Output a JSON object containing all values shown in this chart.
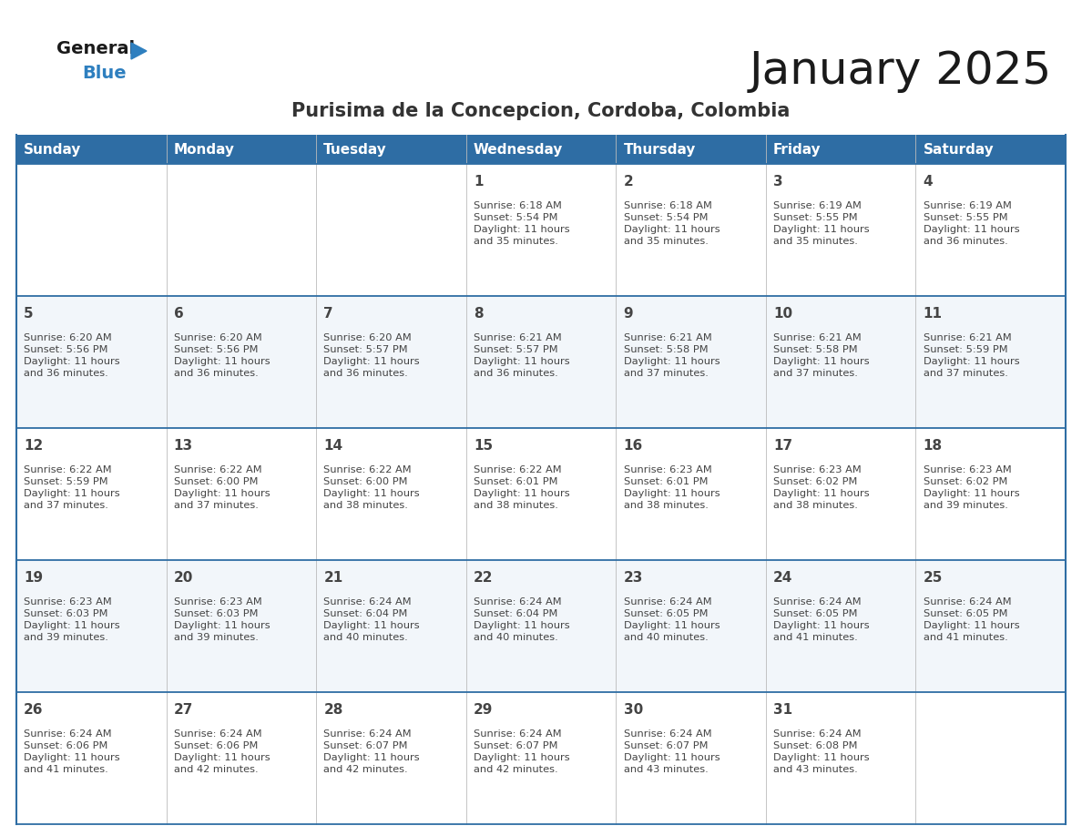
{
  "title": "January 2025",
  "subtitle": "Purisima de la Concepcion, Cordoba, Colombia",
  "header_bg_color": "#2E6DA4",
  "header_text_color": "#FFFFFF",
  "grid_line_color": "#2E6DA4",
  "text_color": "#444444",
  "days_of_week": [
    "Sunday",
    "Monday",
    "Tuesday",
    "Wednesday",
    "Thursday",
    "Friday",
    "Saturday"
  ],
  "calendar_data": [
    [
      {
        "day": "",
        "info": ""
      },
      {
        "day": "",
        "info": ""
      },
      {
        "day": "",
        "info": ""
      },
      {
        "day": "1",
        "info": "Sunrise: 6:18 AM\nSunset: 5:54 PM\nDaylight: 11 hours\nand 35 minutes."
      },
      {
        "day": "2",
        "info": "Sunrise: 6:18 AM\nSunset: 5:54 PM\nDaylight: 11 hours\nand 35 minutes."
      },
      {
        "day": "3",
        "info": "Sunrise: 6:19 AM\nSunset: 5:55 PM\nDaylight: 11 hours\nand 35 minutes."
      },
      {
        "day": "4",
        "info": "Sunrise: 6:19 AM\nSunset: 5:55 PM\nDaylight: 11 hours\nand 36 minutes."
      }
    ],
    [
      {
        "day": "5",
        "info": "Sunrise: 6:20 AM\nSunset: 5:56 PM\nDaylight: 11 hours\nand 36 minutes."
      },
      {
        "day": "6",
        "info": "Sunrise: 6:20 AM\nSunset: 5:56 PM\nDaylight: 11 hours\nand 36 minutes."
      },
      {
        "day": "7",
        "info": "Sunrise: 6:20 AM\nSunset: 5:57 PM\nDaylight: 11 hours\nand 36 minutes."
      },
      {
        "day": "8",
        "info": "Sunrise: 6:21 AM\nSunset: 5:57 PM\nDaylight: 11 hours\nand 36 minutes."
      },
      {
        "day": "9",
        "info": "Sunrise: 6:21 AM\nSunset: 5:58 PM\nDaylight: 11 hours\nand 37 minutes."
      },
      {
        "day": "10",
        "info": "Sunrise: 6:21 AM\nSunset: 5:58 PM\nDaylight: 11 hours\nand 37 minutes."
      },
      {
        "day": "11",
        "info": "Sunrise: 6:21 AM\nSunset: 5:59 PM\nDaylight: 11 hours\nand 37 minutes."
      }
    ],
    [
      {
        "day": "12",
        "info": "Sunrise: 6:22 AM\nSunset: 5:59 PM\nDaylight: 11 hours\nand 37 minutes."
      },
      {
        "day": "13",
        "info": "Sunrise: 6:22 AM\nSunset: 6:00 PM\nDaylight: 11 hours\nand 37 minutes."
      },
      {
        "day": "14",
        "info": "Sunrise: 6:22 AM\nSunset: 6:00 PM\nDaylight: 11 hours\nand 38 minutes."
      },
      {
        "day": "15",
        "info": "Sunrise: 6:22 AM\nSunset: 6:01 PM\nDaylight: 11 hours\nand 38 minutes."
      },
      {
        "day": "16",
        "info": "Sunrise: 6:23 AM\nSunset: 6:01 PM\nDaylight: 11 hours\nand 38 minutes."
      },
      {
        "day": "17",
        "info": "Sunrise: 6:23 AM\nSunset: 6:02 PM\nDaylight: 11 hours\nand 38 minutes."
      },
      {
        "day": "18",
        "info": "Sunrise: 6:23 AM\nSunset: 6:02 PM\nDaylight: 11 hours\nand 39 minutes."
      }
    ],
    [
      {
        "day": "19",
        "info": "Sunrise: 6:23 AM\nSunset: 6:03 PM\nDaylight: 11 hours\nand 39 minutes."
      },
      {
        "day": "20",
        "info": "Sunrise: 6:23 AM\nSunset: 6:03 PM\nDaylight: 11 hours\nand 39 minutes."
      },
      {
        "day": "21",
        "info": "Sunrise: 6:24 AM\nSunset: 6:04 PM\nDaylight: 11 hours\nand 40 minutes."
      },
      {
        "day": "22",
        "info": "Sunrise: 6:24 AM\nSunset: 6:04 PM\nDaylight: 11 hours\nand 40 minutes."
      },
      {
        "day": "23",
        "info": "Sunrise: 6:24 AM\nSunset: 6:05 PM\nDaylight: 11 hours\nand 40 minutes."
      },
      {
        "day": "24",
        "info": "Sunrise: 6:24 AM\nSunset: 6:05 PM\nDaylight: 11 hours\nand 41 minutes."
      },
      {
        "day": "25",
        "info": "Sunrise: 6:24 AM\nSunset: 6:05 PM\nDaylight: 11 hours\nand 41 minutes."
      }
    ],
    [
      {
        "day": "26",
        "info": "Sunrise: 6:24 AM\nSunset: 6:06 PM\nDaylight: 11 hours\nand 41 minutes."
      },
      {
        "day": "27",
        "info": "Sunrise: 6:24 AM\nSunset: 6:06 PM\nDaylight: 11 hours\nand 42 minutes."
      },
      {
        "day": "28",
        "info": "Sunrise: 6:24 AM\nSunset: 6:07 PM\nDaylight: 11 hours\nand 42 minutes."
      },
      {
        "day": "29",
        "info": "Sunrise: 6:24 AM\nSunset: 6:07 PM\nDaylight: 11 hours\nand 42 minutes."
      },
      {
        "day": "30",
        "info": "Sunrise: 6:24 AM\nSunset: 6:07 PM\nDaylight: 11 hours\nand 43 minutes."
      },
      {
        "day": "31",
        "info": "Sunrise: 6:24 AM\nSunset: 6:08 PM\nDaylight: 11 hours\nand 43 minutes."
      },
      {
        "day": "",
        "info": ""
      }
    ]
  ],
  "logo_general_color": "#1a1a1a",
  "logo_blue_color": "#2E7FBF",
  "logo_triangle_color": "#2E7FBF"
}
